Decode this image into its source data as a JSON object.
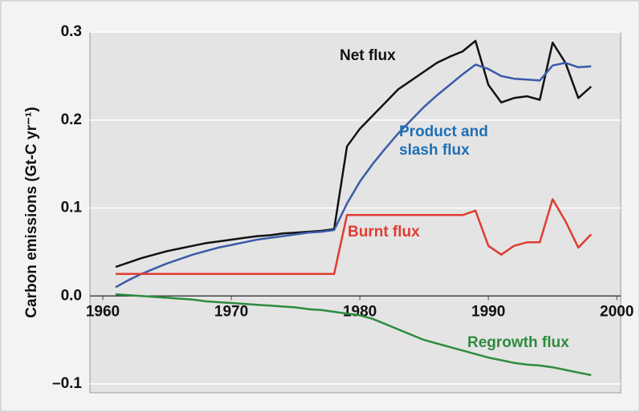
{
  "chart_data": {
    "type": "line",
    "ylabel": "Carbon emissions (Gt-C yr⁻¹)",
    "x": [
      1961,
      1962,
      1963,
      1964,
      1965,
      1966,
      1967,
      1968,
      1969,
      1970,
      1971,
      1972,
      1973,
      1974,
      1975,
      1976,
      1977,
      1978,
      1979,
      1980,
      1981,
      1982,
      1983,
      1984,
      1985,
      1986,
      1987,
      1988,
      1989,
      1990,
      1991,
      1992,
      1993,
      1994,
      1995,
      1996,
      1997,
      1998
    ],
    "series": [
      {
        "name": "Net flux",
        "color": "#111111",
        "label_color": "#111111",
        "values": [
          0.033,
          0.038,
          0.043,
          0.047,
          0.051,
          0.054,
          0.057,
          0.06,
          0.062,
          0.064,
          0.066,
          0.068,
          0.069,
          0.071,
          0.072,
          0.073,
          0.074,
          0.076,
          0.17,
          0.19,
          0.205,
          0.22,
          0.235,
          0.245,
          0.255,
          0.265,
          0.272,
          0.278,
          0.29,
          0.24,
          0.22,
          0.225,
          0.227,
          0.223,
          0.288,
          0.265,
          0.225,
          0.238
        ]
      },
      {
        "name": "Product and slash flux",
        "color": "#3a5ba8",
        "label_color": "#1f6fb5",
        "values": [
          0.01,
          0.018,
          0.025,
          0.031,
          0.037,
          0.042,
          0.047,
          0.051,
          0.055,
          0.058,
          0.061,
          0.064,
          0.066,
          0.068,
          0.07,
          0.072,
          0.073,
          0.075,
          0.105,
          0.13,
          0.15,
          0.168,
          0.185,
          0.2,
          0.215,
          0.228,
          0.24,
          0.252,
          0.263,
          0.258,
          0.25,
          0.247,
          0.246,
          0.245,
          0.262,
          0.265,
          0.26,
          0.261
        ]
      },
      {
        "name": "Burnt flux",
        "color": "#e03c31",
        "label_color": "#e03c31",
        "values": [
          0.025,
          0.025,
          0.025,
          0.025,
          0.025,
          0.025,
          0.025,
          0.025,
          0.025,
          0.025,
          0.025,
          0.025,
          0.025,
          0.025,
          0.025,
          0.025,
          0.025,
          0.025,
          0.092,
          0.092,
          0.092,
          0.092,
          0.092,
          0.092,
          0.092,
          0.092,
          0.092,
          0.092,
          0.097,
          0.057,
          0.047,
          0.057,
          0.061,
          0.061,
          0.11,
          0.085,
          0.055,
          0.07
        ]
      },
      {
        "name": "Regrowth flux",
        "color": "#2e8b3e",
        "label_color": "#2e8b3e",
        "values": [
          0.002,
          0.001,
          0.0,
          -0.001,
          -0.002,
          -0.003,
          -0.004,
          -0.006,
          -0.007,
          -0.008,
          -0.009,
          -0.01,
          -0.011,
          -0.012,
          -0.013,
          -0.015,
          -0.016,
          -0.018,
          -0.02,
          -0.022,
          -0.026,
          -0.032,
          -0.038,
          -0.044,
          -0.05,
          -0.054,
          -0.058,
          -0.062,
          -0.066,
          -0.07,
          -0.073,
          -0.076,
          -0.078,
          -0.079,
          -0.081,
          -0.084,
          -0.087,
          -0.09
        ]
      }
    ],
    "xlim": [
      1959,
      2000.3
    ],
    "xticks": [
      1960,
      1970,
      1980,
      1990,
      2000
    ],
    "ylim": [
      -0.11,
      0.3
    ],
    "yticks": [
      {
        "value": -0.1,
        "label": "–0.1"
      },
      {
        "value": 0,
        "label": "0.0"
      },
      0.1,
      0.2,
      0.3
    ],
    "grid": true
  }
}
